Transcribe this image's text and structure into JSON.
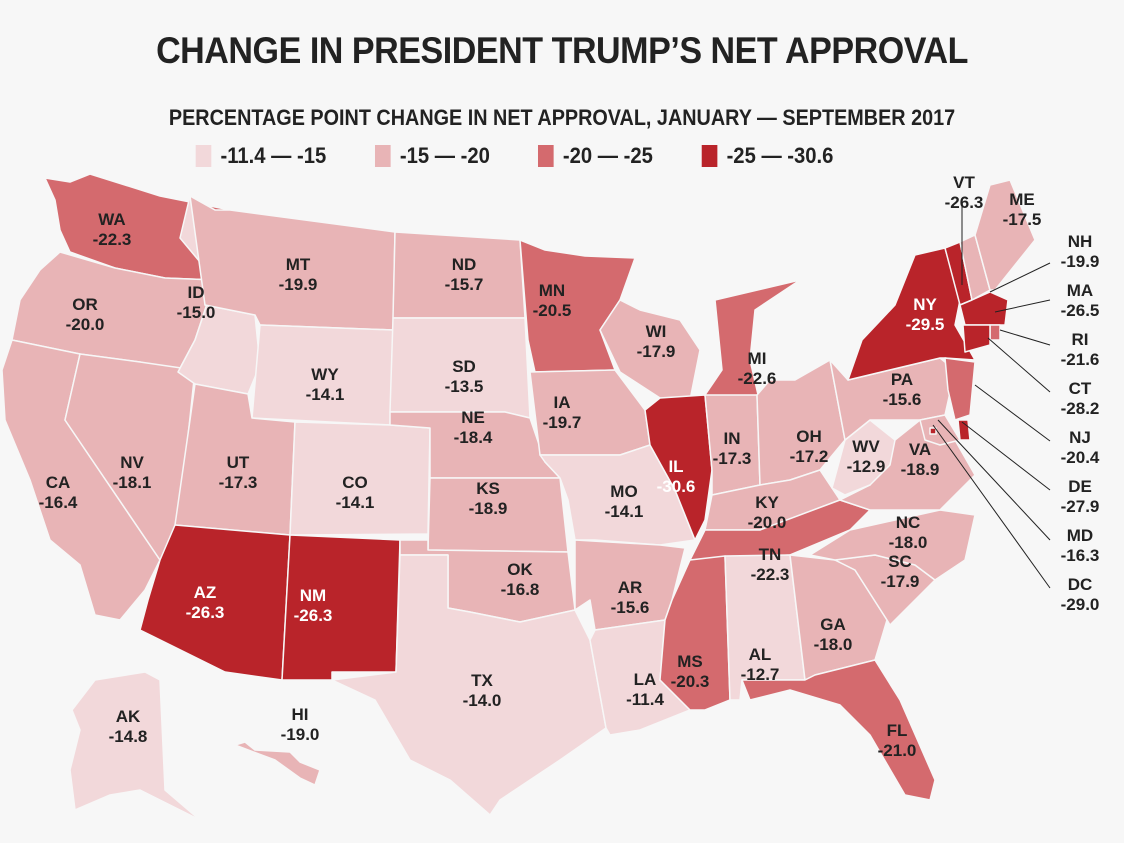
{
  "title": "CHANGE IN PRESIDENT TRUMP’S NET APPROVAL",
  "subtitle": "PERCENTAGE POINT CHANGE IN NET APPROVAL, JANUARY — SEPTEMBER 2017",
  "legend": [
    {
      "label": "-11.4 — -15",
      "color": "#f2d8da",
      "min": -15,
      "max": -11.4
    },
    {
      "label": "-15 — -20",
      "color": "#e8b4b6",
      "min": -20,
      "max": -15
    },
    {
      "label": "-20 — -25",
      "color": "#d46a6e",
      "min": -25,
      "max": -20
    },
    {
      "label": "-25 — -30.6",
      "color": "#b9242a",
      "min": -30.6,
      "max": -25
    }
  ],
  "chart_data": {
    "type": "choropleth",
    "title": "CHANGE IN PRESIDENT TRUMP’S NET APPROVAL",
    "subtitle": "PERCENTAGE POINT CHANGE IN NET APPROVAL, JANUARY — SEPTEMBER 2017",
    "unit": "percentage points",
    "legend_placement": "top",
    "states": [
      {
        "abbr": "WA",
        "value": -22.3
      },
      {
        "abbr": "OR",
        "value": -20.0
      },
      {
        "abbr": "CA",
        "value": -16.4
      },
      {
        "abbr": "NV",
        "value": -18.1
      },
      {
        "abbr": "ID",
        "value": -15.0
      },
      {
        "abbr": "MT",
        "value": -19.9
      },
      {
        "abbr": "WY",
        "value": -14.1
      },
      {
        "abbr": "UT",
        "value": -17.3
      },
      {
        "abbr": "CO",
        "value": -14.1
      },
      {
        "abbr": "AZ",
        "value": -26.3
      },
      {
        "abbr": "NM",
        "value": -26.3
      },
      {
        "abbr": "ND",
        "value": -15.7
      },
      {
        "abbr": "SD",
        "value": -13.5
      },
      {
        "abbr": "NE",
        "value": -18.4
      },
      {
        "abbr": "KS",
        "value": -18.9
      },
      {
        "abbr": "OK",
        "value": -16.8
      },
      {
        "abbr": "TX",
        "value": -14.0
      },
      {
        "abbr": "MN",
        "value": -20.5
      },
      {
        "abbr": "IA",
        "value": -19.7
      },
      {
        "abbr": "MO",
        "value": -14.1
      },
      {
        "abbr": "AR",
        "value": -15.6
      },
      {
        "abbr": "LA",
        "value": -11.4
      },
      {
        "abbr": "WI",
        "value": -17.9
      },
      {
        "abbr": "IL",
        "value": -30.6
      },
      {
        "abbr": "MI",
        "value": -22.6
      },
      {
        "abbr": "IN",
        "value": -17.3
      },
      {
        "abbr": "OH",
        "value": -17.2
      },
      {
        "abbr": "KY",
        "value": -20.0
      },
      {
        "abbr": "TN",
        "value": -22.3
      },
      {
        "abbr": "MS",
        "value": -20.3
      },
      {
        "abbr": "AL",
        "value": -12.7
      },
      {
        "abbr": "GA",
        "value": -18.0
      },
      {
        "abbr": "FL",
        "value": -21.0
      },
      {
        "abbr": "SC",
        "value": -17.9
      },
      {
        "abbr": "NC",
        "value": -18.0
      },
      {
        "abbr": "VA",
        "value": -18.9
      },
      {
        "abbr": "WV",
        "value": -12.9
      },
      {
        "abbr": "PA",
        "value": -15.6
      },
      {
        "abbr": "NY",
        "value": -29.5
      },
      {
        "abbr": "VT",
        "value": -26.3
      },
      {
        "abbr": "NH",
        "value": -19.9
      },
      {
        "abbr": "ME",
        "value": -17.5
      },
      {
        "abbr": "MA",
        "value": -26.5
      },
      {
        "abbr": "RI",
        "value": -21.6
      },
      {
        "abbr": "CT",
        "value": -28.2
      },
      {
        "abbr": "NJ",
        "value": -20.4
      },
      {
        "abbr": "DE",
        "value": -27.9
      },
      {
        "abbr": "MD",
        "value": -16.3
      },
      {
        "abbr": "DC",
        "value": -29.0
      },
      {
        "abbr": "AK",
        "value": -14.8
      },
      {
        "abbr": "HI",
        "value": -19.0
      }
    ]
  }
}
